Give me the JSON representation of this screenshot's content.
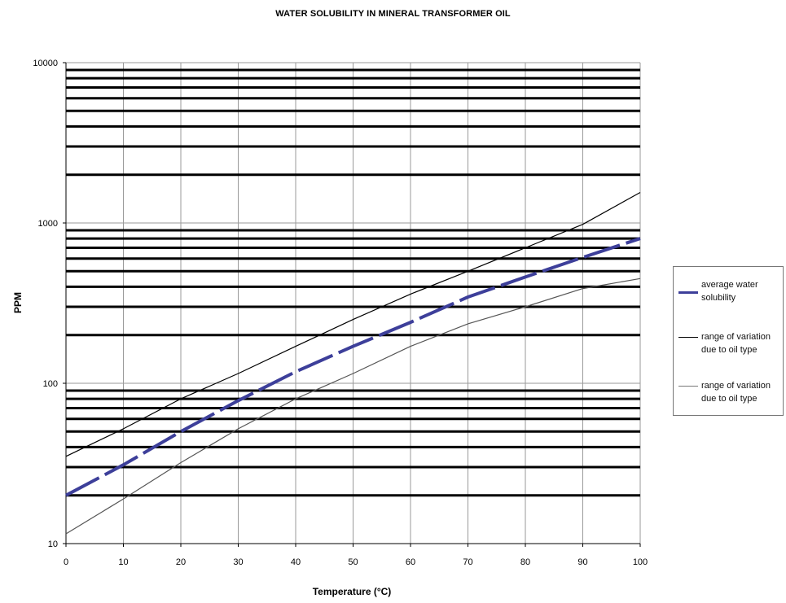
{
  "chart_data": {
    "type": "line",
    "title": "WATER SOLUBILITY IN MINERAL TRANSFORMER OIL",
    "xlabel": "Temperature (°C)",
    "ylabel": "PPM",
    "xlim": [
      0,
      100
    ],
    "ylim": [
      10,
      10000
    ],
    "y_scale": "log",
    "x_ticks": [
      0,
      10,
      20,
      30,
      40,
      50,
      60,
      70,
      80,
      90,
      100
    ],
    "y_ticks": [
      10,
      100,
      1000,
      10000
    ],
    "grid": true,
    "legend_position": "right",
    "x": [
      0,
      10,
      20,
      30,
      40,
      50,
      60,
      70,
      80,
      90,
      100
    ],
    "series": [
      {
        "name": "average water solubility",
        "color": "#3d3f9a",
        "dashed": true,
        "values": [
          20,
          31,
          50,
          78,
          118,
          170,
          240,
          345,
          460,
          610,
          800
        ]
      },
      {
        "name": "range of variation due to oil type",
        "color": "#000000",
        "values": [
          35,
          52,
          80,
          115,
          170,
          250,
          360,
          500,
          700,
          980,
          1550
        ]
      },
      {
        "name": "range of variation due to oil type",
        "color": "#555555",
        "values": [
          11.5,
          19,
          32,
          52,
          80,
          115,
          170,
          235,
          300,
          390,
          450
        ]
      }
    ]
  }
}
